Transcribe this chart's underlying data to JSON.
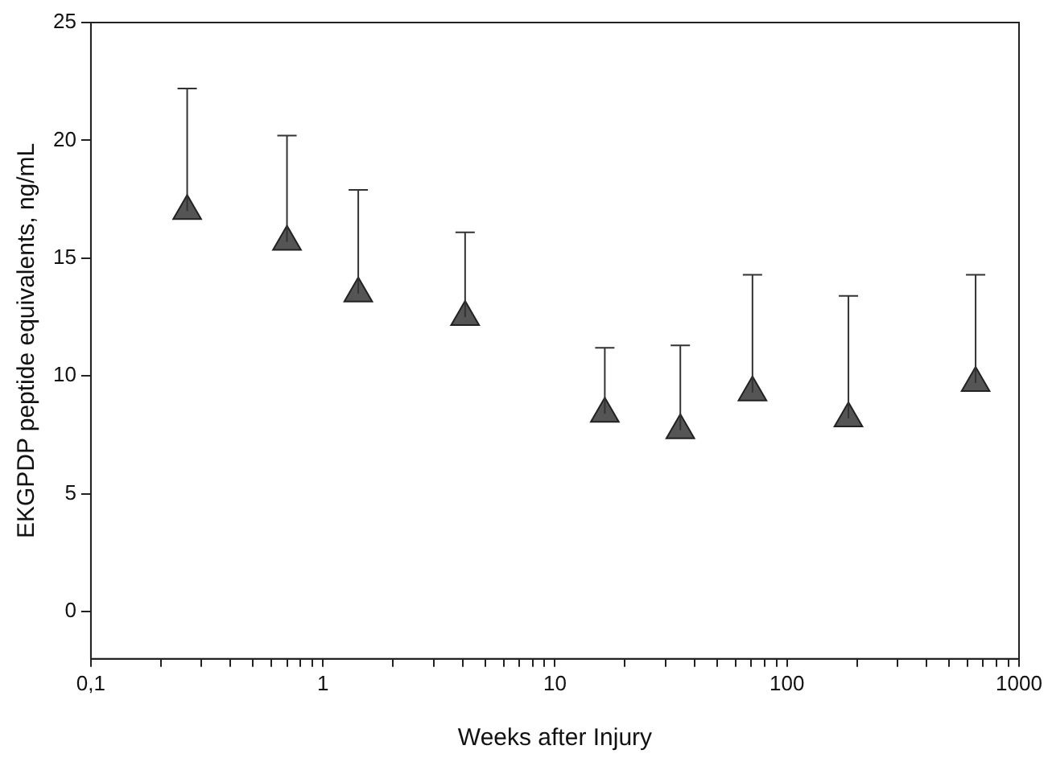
{
  "chart_data": {
    "type": "scatter",
    "xlabel": "Weeks after Injury",
    "ylabel": "EKGPDP peptide equivalents, ng/mL",
    "log": "x",
    "marker": "triangle",
    "grid": false,
    "legend": false,
    "x": [
      0.26,
      0.7,
      1.42,
      4.1,
      16.4,
      34.7,
      71,
      184,
      650
    ],
    "series": [
      {
        "color": "#555555",
        "values": [
          17.0,
          15.7,
          13.5,
          12.5,
          8.4,
          7.7,
          9.3,
          8.2,
          9.7
        ],
        "errors": [
          [
            17.0,
            22.2
          ],
          [
            15.7,
            20.2
          ],
          [
            13.5,
            17.9
          ],
          [
            12.5,
            16.1
          ],
          [
            8.4,
            11.2
          ],
          [
            7.7,
            11.3
          ],
          [
            9.3,
            14.3
          ],
          [
            8.2,
            13.4
          ],
          [
            9.7,
            14.3
          ]
        ]
      }
    ],
    "xlim": [
      0.1,
      1000
    ],
    "xticks": [
      {
        "value": 0.1,
        "label": "0,1"
      },
      {
        "value": 0.2,
        "label": null
      },
      {
        "value": 0.3,
        "label": null
      },
      {
        "value": 0.4,
        "label": null
      },
      {
        "value": 0.5,
        "label": null
      },
      {
        "value": 0.6,
        "label": null
      },
      {
        "value": 0.7,
        "label": null
      },
      {
        "value": 0.8,
        "label": null
      },
      {
        "value": 0.9,
        "label": null
      },
      1,
      {
        "value": 2,
        "label": null
      },
      {
        "value": 3,
        "label": null
      },
      {
        "value": 4,
        "label": null
      },
      {
        "value": 5,
        "label": null
      },
      {
        "value": 6,
        "label": null
      },
      {
        "value": 7,
        "label": null
      },
      {
        "value": 8,
        "label": null
      },
      {
        "value": 9,
        "label": null
      },
      10,
      {
        "value": 20,
        "label": null
      },
      {
        "value": 30,
        "label": null
      },
      {
        "value": 40,
        "label": null
      },
      {
        "value": 50,
        "label": null
      },
      {
        "value": 60,
        "label": null
      },
      {
        "value": 70,
        "label": null
      },
      {
        "value": 80,
        "label": null
      },
      {
        "value": 90,
        "label": null
      },
      100,
      {
        "value": 200,
        "label": null
      },
      {
        "value": 300,
        "label": null
      },
      {
        "value": 400,
        "label": null
      },
      {
        "value": 500,
        "label": null
      },
      {
        "value": 600,
        "label": null
      },
      {
        "value": 700,
        "label": null
      },
      {
        "value": 800,
        "label": null
      },
      {
        "value": 900,
        "label": null
      },
      1000
    ],
    "ylim": [
      -2,
      25
    ],
    "yticks": [
      0,
      5,
      10,
      15,
      20,
      25
    ]
  }
}
